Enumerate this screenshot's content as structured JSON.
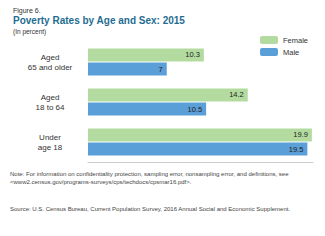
{
  "chart_data": {
    "type": "bar",
    "orientation": "horizontal",
    "title": "Poverty Rates by Age and Sex: 2015",
    "subtitle": "(In percent)",
    "annotations": [
      "Figure 6.",
      "Note: For information on confidentiality protection, sampling error, nonsampling error, and definitions, see <www2.census.gov/programs-surveys/cps/techdocs/cpsmar16.pdf>.",
      "Source: U.S. Census Bureau, Current Population Survey, 2016 Annual Social and Economic Supplement."
    ],
    "categories": [
      "Aged 65 and older",
      "Aged 18 to 64",
      "Under age 18"
    ],
    "series": [
      {
        "name": "Female",
        "color": "#b3dba0",
        "values": [
          10.3,
          14.2,
          19.9
        ]
      },
      {
        "name": "Male",
        "color": "#5b9fd8",
        "values": [
          7.0,
          10.5,
          19.5
        ]
      }
    ],
    "xlim": [
      0,
      20
    ],
    "grid": false,
    "legend": "top-right",
    "data_labels": true,
    "tick_labels": "y"
  }
}
